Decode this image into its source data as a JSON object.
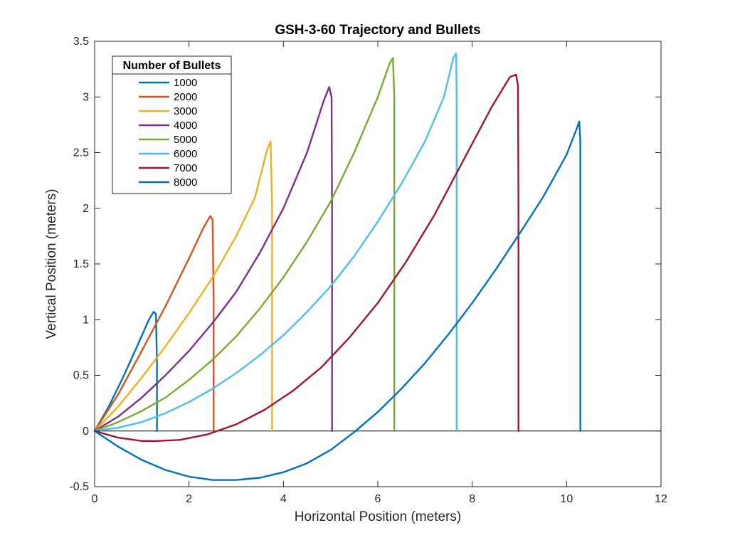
{
  "chart_data": {
    "type": "line",
    "title": "GSH-3-60 Trajectory and Bullets",
    "xlabel": "Horizontal Position (meters)",
    "ylabel": "Vertical Position (meters)",
    "xlim": [
      0,
      12
    ],
    "ylim": [
      -0.5,
      3.5
    ],
    "xticks": [
      0,
      2,
      4,
      6,
      8,
      10,
      12
    ],
    "yticks": [
      -0.5,
      0,
      0.5,
      1,
      1.5,
      2,
      2.5,
      3,
      3.5
    ],
    "xtick_labels": [
      "0",
      "2",
      "4",
      "6",
      "8",
      "10",
      "12"
    ],
    "ytick_labels": [
      "-0.5",
      "0",
      "0.5",
      "1",
      "1.5",
      "2",
      "2.5",
      "3",
      "3.5"
    ],
    "grid": false,
    "zero_line": {
      "y": 0,
      "color": "#000000"
    },
    "legend": {
      "title": "Number of Bullets",
      "placement": "top-left"
    },
    "series": [
      {
        "name": "1000",
        "color": "#0072BD",
        "x": [
          0,
          0.3,
          0.6,
          0.9,
          1.15,
          1.25,
          1.3,
          1.32,
          1.32
        ],
        "y": [
          0,
          0.22,
          0.48,
          0.76,
          1.0,
          1.07,
          1.05,
          0.6,
          0
        ]
      },
      {
        "name": "2000",
        "color": "#D95319",
        "x": [
          0,
          0.5,
          1.0,
          1.5,
          2.0,
          2.3,
          2.45,
          2.5,
          2.52,
          2.52
        ],
        "y": [
          0,
          0.33,
          0.72,
          1.12,
          1.55,
          1.82,
          1.93,
          1.9,
          1.2,
          0
        ]
      },
      {
        "name": "3000",
        "color": "#EDB120",
        "x": [
          0,
          0.5,
          1.0,
          1.5,
          2.0,
          2.5,
          3.0,
          3.4,
          3.65,
          3.73,
          3.76,
          3.76
        ],
        "y": [
          0,
          0.22,
          0.48,
          0.76,
          1.06,
          1.38,
          1.75,
          2.1,
          2.52,
          2.6,
          2.0,
          0
        ]
      },
      {
        "name": "4000",
        "color": "#7E2F8E",
        "x": [
          0,
          0.5,
          1.0,
          1.5,
          2.0,
          2.5,
          3.0,
          3.5,
          4.0,
          4.5,
          4.85,
          4.97,
          5.02,
          5.03,
          5.03
        ],
        "y": [
          0,
          0.13,
          0.3,
          0.5,
          0.72,
          0.97,
          1.25,
          1.6,
          2.0,
          2.5,
          2.96,
          3.09,
          3.0,
          2.0,
          0
        ]
      },
      {
        "name": "5000",
        "color": "#77AC30",
        "x": [
          0,
          0.5,
          1.0,
          1.5,
          2.0,
          2.5,
          3.0,
          3.5,
          4.0,
          4.5,
          5.0,
          5.5,
          6.0,
          6.25,
          6.32,
          6.35,
          6.35
        ],
        "y": [
          0,
          0.08,
          0.18,
          0.3,
          0.46,
          0.64,
          0.85,
          1.1,
          1.38,
          1.7,
          2.06,
          2.5,
          3.0,
          3.3,
          3.35,
          3.0,
          0
        ]
      },
      {
        "name": "6000",
        "color": "#4DBEEE",
        "x": [
          0,
          0.5,
          1.0,
          1.5,
          2.0,
          2.5,
          3.0,
          3.5,
          4.0,
          4.5,
          5.0,
          5.5,
          6.0,
          6.5,
          7.0,
          7.4,
          7.6,
          7.66,
          7.67,
          7.67
        ],
        "y": [
          0,
          0.03,
          0.08,
          0.16,
          0.26,
          0.38,
          0.52,
          0.68,
          0.86,
          1.07,
          1.3,
          1.57,
          1.88,
          2.22,
          2.6,
          3.0,
          3.35,
          3.39,
          3.0,
          0
        ]
      },
      {
        "name": "7000",
        "color": "#A2142F",
        "x": [
          0,
          0.5,
          1.0,
          1.3,
          1.8,
          2.4,
          3.0,
          3.6,
          4.2,
          4.8,
          5.4,
          6.0,
          6.6,
          7.2,
          7.8,
          8.4,
          8.8,
          8.93,
          8.97,
          8.98,
          8.98
        ],
        "y": [
          0,
          -0.06,
          -0.09,
          -0.09,
          -0.08,
          -0.03,
          0.06,
          0.19,
          0.36,
          0.57,
          0.84,
          1.15,
          1.52,
          1.94,
          2.42,
          2.9,
          3.18,
          3.2,
          3.1,
          2.0,
          0
        ]
      },
      {
        "name": "8000",
        "color": "#0072BD",
        "x": [
          0,
          0.5,
          1.0,
          1.5,
          2.0,
          2.5,
          3.0,
          3.5,
          4.0,
          4.5,
          5.0,
          5.5,
          6.0,
          6.5,
          7.0,
          7.5,
          8.0,
          8.5,
          9.0,
          9.5,
          10.0,
          10.2,
          10.27,
          10.29,
          10.29
        ],
        "y": [
          0,
          -0.14,
          -0.26,
          -0.35,
          -0.41,
          -0.44,
          -0.44,
          -0.42,
          -0.37,
          -0.29,
          -0.17,
          -0.01,
          0.17,
          0.38,
          0.61,
          0.87,
          1.15,
          1.45,
          1.77,
          2.1,
          2.48,
          2.7,
          2.78,
          2.6,
          0
        ]
      }
    ]
  }
}
